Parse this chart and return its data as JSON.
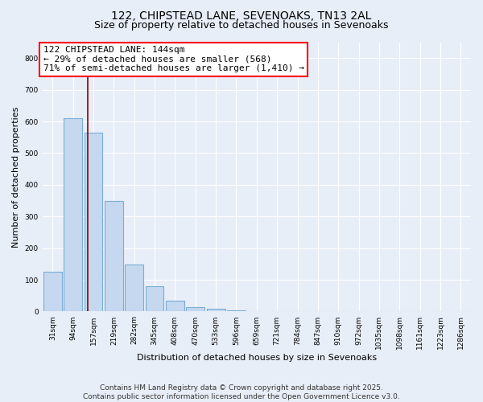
{
  "title_line1": "122, CHIPSTEAD LANE, SEVENOAKS, TN13 2AL",
  "title_line2": "Size of property relative to detached houses in Sevenoaks",
  "xlabel": "Distribution of detached houses by size in Sevenoaks",
  "ylabel": "Number of detached properties",
  "categories": [
    "31sqm",
    "94sqm",
    "157sqm",
    "219sqm",
    "282sqm",
    "345sqm",
    "408sqm",
    "470sqm",
    "533sqm",
    "596sqm",
    "659sqm",
    "721sqm",
    "784sqm",
    "847sqm",
    "910sqm",
    "972sqm",
    "1035sqm",
    "1098sqm",
    "1161sqm",
    "1223sqm",
    "1286sqm"
  ],
  "values": [
    125,
    610,
    565,
    350,
    148,
    80,
    35,
    15,
    8,
    4,
    2,
    1,
    1,
    0,
    0,
    0,
    0,
    0,
    0,
    0,
    0
  ],
  "bar_color": "#c5d8f0",
  "bar_edge_color": "#7aadd4",
  "annotation_box_text": "122 CHIPSTEAD LANE: 144sqm\n← 29% of detached houses are smaller (568)\n71% of semi-detached houses are larger (1,410) →",
  "annotation_box_color": "white",
  "annotation_box_edge_color": "red",
  "vline_color": "#8b0000",
  "vline_x": 1.72,
  "ylim": [
    0,
    850
  ],
  "yticks": [
    0,
    100,
    200,
    300,
    400,
    500,
    600,
    700,
    800
  ],
  "footnote": "Contains HM Land Registry data © Crown copyright and database right 2025.\nContains public sector information licensed under the Open Government Licence v3.0.",
  "background_color": "#e8eef8",
  "plot_background_color": "#e8eef8",
  "grid_color": "#ffffff",
  "title_fontsize": 10,
  "subtitle_fontsize": 9,
  "label_fontsize": 8,
  "tick_fontsize": 6.5,
  "annotation_fontsize": 8,
  "footnote_fontsize": 6.5
}
